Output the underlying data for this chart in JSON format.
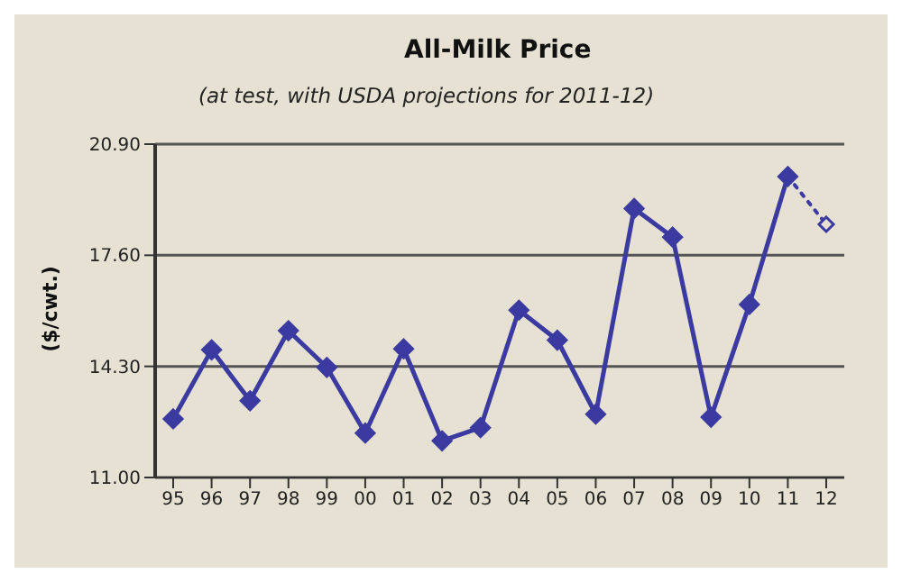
{
  "chart_data": {
    "type": "line",
    "title": "All-Milk Price",
    "subtitle": "(at test, with USDA projections for 2011-12)",
    "ylabel": "($/cwt.)",
    "categories": [
      "95",
      "96",
      "97",
      "98",
      "99",
      "00",
      "01",
      "02",
      "03",
      "04",
      "05",
      "06",
      "07",
      "08",
      "09",
      "10",
      "11",
      "12"
    ],
    "series": [
      {
        "color": "#3a3aa0",
        "marker": "diamond",
        "line_style": "solid",
        "values": [
          12.74,
          14.79,
          13.28,
          15.36,
          14.27,
          12.32,
          14.82,
          12.09,
          12.48,
          15.97,
          15.08,
          12.88,
          18.99,
          18.14,
          12.79,
          16.14,
          19.94,
          null
        ]
      },
      {
        "color": "#3a3aa0",
        "marker": "diamond",
        "line_style": "dotted",
        "values": [
          null,
          null,
          null,
          null,
          null,
          null,
          null,
          null,
          null,
          null,
          null,
          null,
          null,
          null,
          null,
          null,
          19.94,
          18.52
        ]
      }
    ],
    "ylim": [
      11,
      20.9
    ],
    "yticks": [
      {
        "value": 11,
        "label": "11.00"
      },
      {
        "value": 14.3,
        "label": "14.30"
      },
      {
        "value": 17.6,
        "label": "17.60"
      },
      {
        "value": 20.9,
        "label": "20.90"
      }
    ],
    "grid": "y"
  }
}
